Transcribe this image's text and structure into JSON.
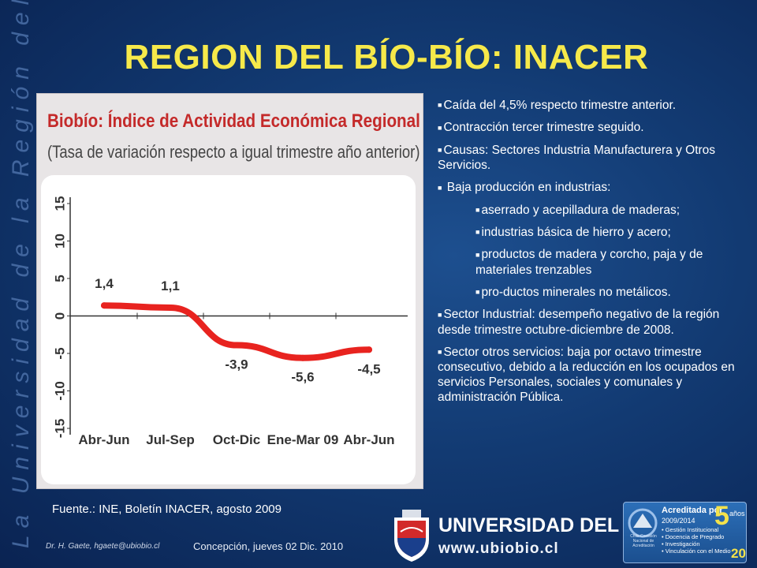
{
  "side_text": "La Universidad de la Región del Bío-Bío",
  "title": "REGION DEL BÍO-BÍO: INACER",
  "chart_data": {
    "type": "line",
    "title": "Biobío: Índice de Actividad Económica Regional",
    "subtitle": "(Tasa de variación respecto a igual trimestre año anterior)",
    "categories": [
      "Abr-Jun",
      "Jul-Sep",
      "Oct-Dic",
      "Ene-Mar 09",
      "Abr-Jun"
    ],
    "values": [
      1.4,
      1.1,
      -3.9,
      -5.6,
      -4.5
    ],
    "value_labels": [
      "1,4",
      "1,1",
      "-3,9",
      "-5,6",
      "-4,5"
    ],
    "yticks": [
      "15",
      "10",
      "5",
      "0",
      "-5",
      "-10",
      "-15"
    ],
    "ylim": [
      -15,
      15
    ],
    "line_color": "#e8231f",
    "grid": false
  },
  "bullets": [
    {
      "text": "Caída del 4,5% respecto trimestre anterior.",
      "level": 0
    },
    {
      "text": "Contracción tercer trimestre seguido.",
      "level": 0
    },
    {
      "text": "Causas: Sectores Industria  Manufacturera y Otros Servicios.",
      "level": 0
    },
    {
      "text": " Baja producción en industrias:",
      "level": 0
    },
    {
      "text": "aserrado y acepilladura de maderas;",
      "level": 1
    },
    {
      "text": "industrias básica de hierro y acero;",
      "level": 1
    },
    {
      "text": "productos de madera y corcho, paja y de materiales trenzables",
      "level": 1
    },
    {
      "text": "pro-ductos minerales no metálicos.",
      "level": 1
    },
    {
      "text": "Sector Industrial: desempeño negativo de la región desde trimestre octubre-diciembre de 2008.",
      "level": 0
    },
    {
      "text": "Sector otros servicios: baja por octavo trimestre consecutivo, debido a la reducción en los ocupados en servicios Personales, sociales y comunales y administración Pública.",
      "level": 0
    }
  ],
  "source": "Fuente.: INE, Boletín INACER, agosto 2009",
  "footer": {
    "author": "Dr. H. Gaete,     hgaete@ubiobio.cl",
    "date": "Concepción, jueves  02 Dic. 2010",
    "page_number": "20"
  },
  "university": {
    "name": "UNIVERSIDAD DEL BÍO-BÍO",
    "url": "www.ubiobio.cl"
  },
  "accreditation": {
    "title": "Acreditada por",
    "years_number": "5",
    "years_word": "años",
    "period": "2009/2014",
    "logo_text": "Chile Comisión Nacional de Acreditación",
    "items": [
      "• Gestión Institucional",
      "• Docencia de Pregrado",
      "• Investigación",
      "• Vinculación con el Medio"
    ]
  },
  "colors": {
    "title": "#f6e94a",
    "chart_title": "#c42a2a",
    "background": "#123a72"
  }
}
